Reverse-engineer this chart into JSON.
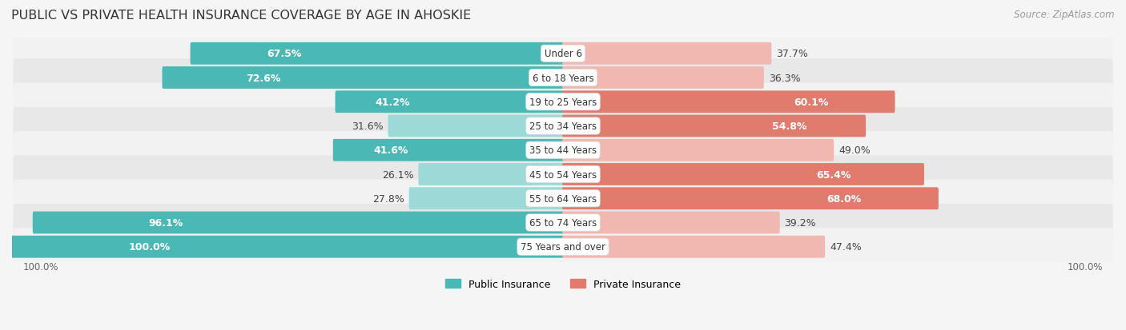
{
  "title": "PUBLIC VS PRIVATE HEALTH INSURANCE COVERAGE BY AGE IN AHOSKIE",
  "source": "Source: ZipAtlas.com",
  "categories": [
    "Under 6",
    "6 to 18 Years",
    "19 to 25 Years",
    "25 to 34 Years",
    "35 to 44 Years",
    "45 to 54 Years",
    "55 to 64 Years",
    "65 to 74 Years",
    "75 Years and over"
  ],
  "public_values": [
    67.5,
    72.6,
    41.2,
    31.6,
    41.6,
    26.1,
    27.8,
    96.1,
    100.0
  ],
  "private_values": [
    37.7,
    36.3,
    60.1,
    54.8,
    49.0,
    65.4,
    68.0,
    39.2,
    47.4
  ],
  "public_color_strong": "#4ab8b4",
  "public_color_light": "#9dd9d7",
  "private_color_strong": "#e07b6e",
  "private_color_light": "#f0b8b0",
  "row_bg_light": "#f2f2f2",
  "row_bg_dark": "#e8e8e8",
  "bar_height": 0.62,
  "legend_labels": [
    "Public Insurance",
    "Private Insurance"
  ],
  "title_fontsize": 11.5,
  "source_fontsize": 8.5,
  "bar_label_fontsize": 9,
  "category_fontsize": 8.5,
  "legend_fontsize": 9,
  "pub_strong_threshold": 40,
  "priv_strong_threshold": 50
}
